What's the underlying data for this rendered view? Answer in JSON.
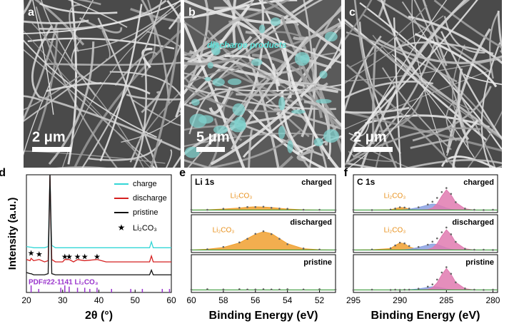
{
  "images": [
    {
      "label": "a",
      "scale_bar": "2 μm"
    },
    {
      "label": "b",
      "scale_bar": "5 μm",
      "annotation": "discharge products"
    },
    {
      "label": "c",
      "scale_bar": "2 μm"
    }
  ],
  "chart_data": [
    {
      "type": "line",
      "label": "d",
      "xlabel": "2θ (°)",
      "ylabel": "Intensity (a.u.)",
      "xlim": [
        20,
        60
      ],
      "xticks": [
        20,
        30,
        40,
        50,
        60
      ],
      "ylim": [
        0,
        100
      ],
      "x": [
        20,
        21,
        21.3,
        22,
        23.5,
        25,
        26,
        26.5,
        27,
        28,
        30,
        30.6,
        31.8,
        33,
        34.1,
        36,
        39.5,
        42,
        46,
        50,
        54,
        54.5,
        55,
        58,
        60
      ],
      "series": [
        {
          "name": "charge",
          "color": "#33d6d6",
          "values": [
            39,
            38.5,
            38.5,
            38,
            38,
            38,
            39,
            100,
            40,
            38,
            38,
            38,
            38,
            38,
            38,
            38,
            38,
            38,
            38,
            38,
            38,
            43,
            38,
            38,
            38
          ]
        },
        {
          "name": "discharge",
          "color": "#d62020",
          "values": [
            28,
            27,
            29,
            27,
            28,
            26,
            27,
            100,
            28,
            26,
            26,
            28,
            28,
            26,
            28,
            27,
            28,
            26,
            26,
            26,
            26,
            31,
            26,
            26,
            26
          ]
        },
        {
          "name": "pristine",
          "color": "#111111",
          "values": [
            17,
            16,
            16,
            15,
            15,
            15,
            16,
            100,
            16,
            15,
            15,
            15,
            15,
            15,
            15,
            15,
            15,
            15,
            15,
            15,
            15,
            19,
            15,
            15,
            15
          ]
        }
      ],
      "markers": {
        "name": "Li₂CO₃",
        "symbol": "★",
        "x": [
          21.3,
          23.5,
          30.6,
          31.8,
          34.1,
          36.1,
          39.5
        ],
        "values": [
          33,
          32,
          30,
          30,
          30,
          30,
          30
        ]
      },
      "reference": {
        "name": "PDF#22-1141 Li₂CO₃",
        "color": "#9933cc",
        "x": [
          21.3,
          23.4,
          29.5,
          30.6,
          31.8,
          34.1,
          36.1,
          37.5,
          39.5,
          43.5,
          48.8,
          52,
          57.5,
          59.5
        ],
        "values": [
          6,
          3,
          4,
          6,
          5,
          4,
          4,
          3,
          4,
          3,
          3,
          3,
          3,
          3
        ]
      }
    },
    {
      "type": "area",
      "label": "e",
      "title": "Li 1s",
      "xlabel": "Binding Energy (eV)",
      "xlim": [
        60,
        51
      ],
      "xticks": [
        60,
        58,
        56,
        54,
        52
      ],
      "ylim": [
        -1,
        10
      ],
      "x": [
        60,
        59,
        58,
        57,
        56.5,
        56,
        55.5,
        55,
        54.5,
        54,
        53,
        52,
        51
      ],
      "panels": [
        {
          "label": "charged",
          "annotation": "Li₂CO₃",
          "fits": [
            {
              "color": "#f0a030",
              "values": [
                0,
                0.1,
                0.4,
                0.8,
                1.1,
                1.3,
                1.2,
                1,
                0.7,
                0.4,
                0.1,
                0,
                0
              ]
            }
          ],
          "raw": [
            0.2,
            0.1,
            0.5,
            0.9,
            1.2,
            1.2,
            1.3,
            0.9,
            0.6,
            0.5,
            0.1,
            0.1,
            0
          ]
        },
        {
          "label": "discharged",
          "annotation": "Li₂CO₃",
          "fits": [
            {
              "color": "#f0a030",
              "values": [
                0,
                0.3,
                1,
                2.8,
                4.5,
                6.2,
                7.2,
                6.5,
                4.5,
                2.5,
                0.5,
                0.1,
                0
              ]
            }
          ],
          "raw": [
            0.1,
            0.3,
            1.2,
            3,
            4.4,
            6.4,
            7.4,
            6.3,
            4.4,
            2.3,
            0.6,
            0.2,
            0.1
          ]
        },
        {
          "label": "pristine",
          "fits": [],
          "raw": [
            0.2,
            0.3,
            0.2,
            0.3,
            0.2,
            0.2,
            0.3,
            0.2,
            0.2,
            0.3,
            0.2,
            0.3,
            0.2
          ]
        }
      ]
    },
    {
      "type": "area",
      "label": "f",
      "title": "C 1s",
      "xlabel": "Binding Energy (eV)",
      "xlim": [
        295,
        279.5
      ],
      "xticks": [
        295,
        290,
        285,
        280
      ],
      "ylim": [
        -1,
        10
      ],
      "x": [
        295,
        293,
        291,
        290.5,
        290,
        289.5,
        289,
        288,
        287,
        286.5,
        286,
        285.5,
        285,
        284.5,
        284,
        283,
        282,
        281,
        280
      ],
      "panels": [
        {
          "label": "charged",
          "annotation": "Li₂CO₃",
          "fits": [
            {
              "color": "#f0a030",
              "values": [
                0,
                0,
                0.1,
                0.6,
                1,
                0.9,
                0.4,
                0,
                0,
                0,
                0,
                0,
                0,
                0,
                0,
                0,
                0,
                0,
                0
              ]
            },
            {
              "color": "#8aa0e0",
              "values": [
                0,
                0,
                0,
                0,
                0,
                0.1,
                0.3,
                1,
                2,
                2.4,
                2.2,
                1.5,
                0.8,
                0.3,
                0.1,
                0,
                0,
                0,
                0
              ]
            },
            {
              "color": "#e07ab0",
              "values": [
                0,
                0,
                0,
                0,
                0,
                0,
                0,
                0,
                0.2,
                0.8,
                2.5,
                5.5,
                8,
                6,
                3,
                0.5,
                0,
                0,
                0
              ]
            }
          ],
          "raw": [
            0.1,
            0,
            0.2,
            0.6,
            1.1,
            1,
            0.6,
            1.1,
            2.2,
            3.3,
            4.8,
            7.1,
            8.7,
            6.4,
            3.1,
            0.6,
            0.1,
            0,
            0.1
          ]
        },
        {
          "label": "discharged",
          "annotation": "Li₂CO₃",
          "fits": [
            {
              "color": "#f0a030",
              "values": [
                0,
                0.1,
                0.6,
                1.8,
                2.8,
                2.5,
                1.2,
                0.2,
                0,
                0,
                0,
                0,
                0,
                0,
                0,
                0,
                0,
                0,
                0
              ]
            },
            {
              "color": "#8aa0e0",
              "values": [
                0,
                0,
                0,
                0,
                0,
                0.1,
                0.3,
                1,
                2,
                2.4,
                2.2,
                1.5,
                0.8,
                0.3,
                0.1,
                0,
                0,
                0,
                0
              ]
            },
            {
              "color": "#e07ab0",
              "values": [
                0,
                0,
                0,
                0,
                0,
                0,
                0,
                0,
                0.2,
                0.8,
                2.5,
                5.5,
                8,
                6,
                3,
                0.5,
                0,
                0,
                0
              ]
            }
          ],
          "raw": [
            0.1,
            0.2,
            0.7,
            1.8,
            2.9,
            2.6,
            1.6,
            1.2,
            2.1,
            3.3,
            4.6,
            7,
            8.9,
            6.2,
            3.2,
            0.5,
            0.1,
            0.1,
            0
          ]
        },
        {
          "label": "pristine",
          "fits": [
            {
              "color": "#8aa0e0",
              "values": [
                0,
                0,
                0,
                0,
                0,
                0,
                0.1,
                0.4,
                1,
                1.3,
                1.2,
                0.8,
                0.4,
                0.1,
                0,
                0,
                0,
                0,
                0
              ]
            },
            {
              "color": "#e07ab0",
              "values": [
                0,
                0,
                0,
                0,
                0,
                0,
                0,
                0,
                0.2,
                0.9,
                2.8,
                6,
                8.5,
                6.2,
                3,
                0.5,
                0,
                0,
                0
              ]
            }
          ],
          "raw": [
            0,
            0.1,
            0,
            0.1,
            0,
            0.1,
            0.1,
            0.5,
            1.3,
            2.2,
            4.1,
            6.9,
            9,
            6.4,
            3,
            0.6,
            0.1,
            0,
            0.1
          ]
        }
      ]
    }
  ]
}
